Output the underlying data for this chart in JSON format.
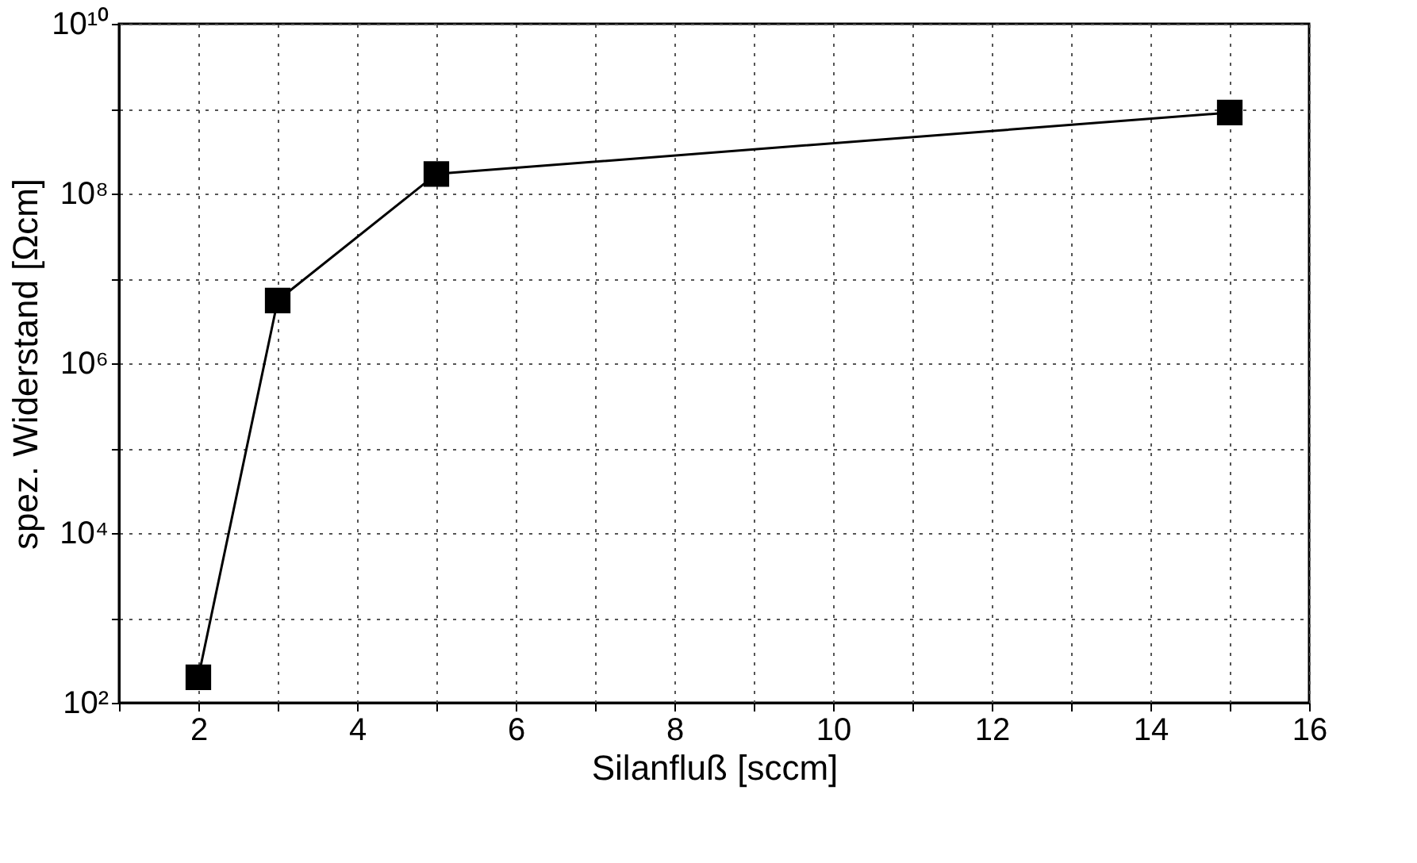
{
  "chart_data": {
    "type": "line",
    "xlabel": "Silanfluß [sccm]",
    "ylabel": "spez. Widerstand [Ωcm]",
    "x": [
      2,
      3,
      5,
      15
    ],
    "series": [
      {
        "color": "#000000",
        "values": [
          200,
          5500000,
          170000000,
          900000000
        ]
      }
    ],
    "log": "y",
    "xlim": [
      1,
      16
    ],
    "xticks": [
      {
        "value": 1,
        "label": null
      },
      2,
      {
        "value": 3,
        "label": null
      },
      4,
      {
        "value": 5,
        "label": null
      },
      6,
      {
        "value": 7,
        "label": null
      },
      8,
      {
        "value": 9,
        "label": null
      },
      10,
      {
        "value": 11,
        "label": null
      },
      12,
      {
        "value": 13,
        "label": null
      },
      14,
      {
        "value": 15,
        "label": null
      },
      16
    ],
    "ylim": [
      100,
      10000000000
    ],
    "yticks": [
      {
        "value": 100,
        "label": "10²"
      },
      {
        "value": 1000,
        "label": null
      },
      {
        "value": 10000,
        "label": "10⁴"
      },
      {
        "value": 100000,
        "label": null
      },
      {
        "value": 1000000,
        "label": "10⁶"
      },
      {
        "value": 10000000,
        "label": null
      },
      {
        "value": 100000000,
        "label": "10⁸"
      },
      {
        "value": 1000000000,
        "label": null
      },
      {
        "value": 10000000000,
        "label": "10¹⁰"
      }
    ],
    "grid": true,
    "marker": "square",
    "line_style": "solid"
  }
}
